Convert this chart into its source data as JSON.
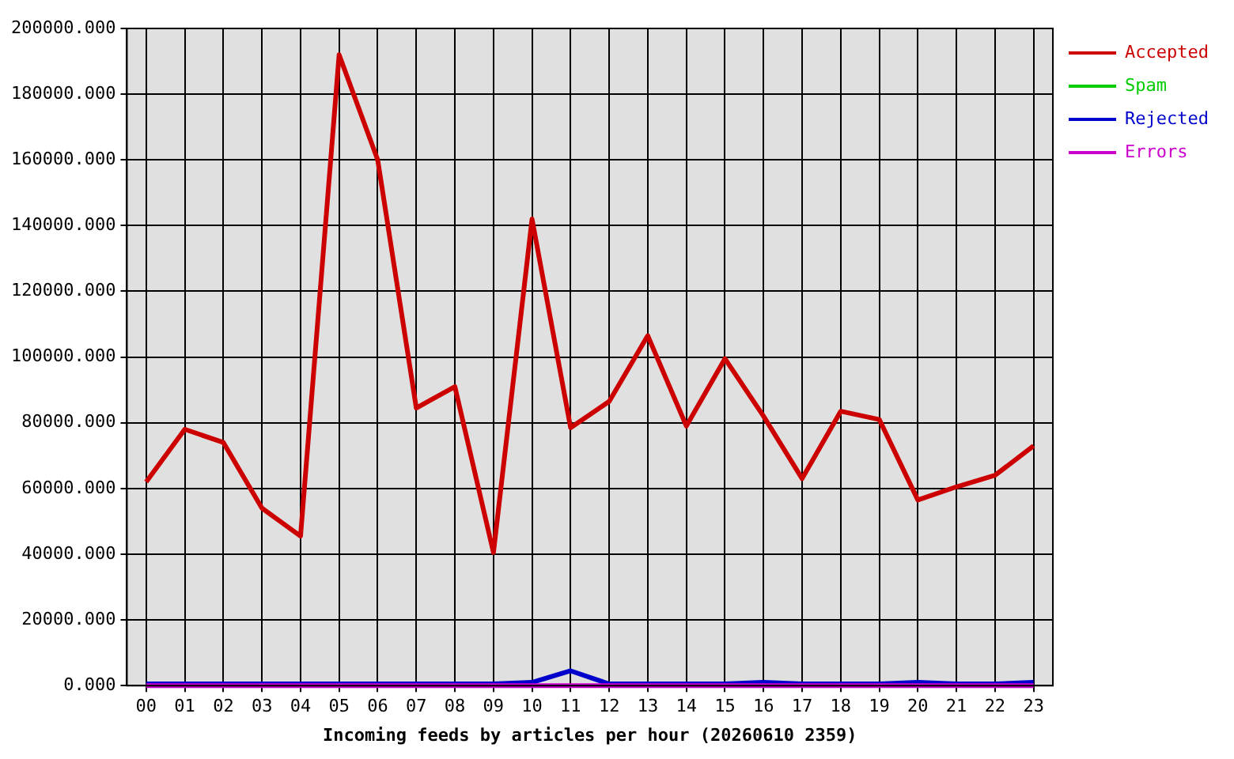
{
  "chart_data": {
    "type": "line",
    "xlabel": "Incoming feeds by articles per hour (20260610 2359)",
    "categories": [
      "00",
      "01",
      "02",
      "03",
      "04",
      "05",
      "06",
      "07",
      "08",
      "09",
      "10",
      "11",
      "12",
      "13",
      "14",
      "15",
      "16",
      "17",
      "18",
      "19",
      "20",
      "21",
      "22",
      "23"
    ],
    "series": [
      {
        "name": "Accepted",
        "color": "#cc0000",
        "values": [
          62000,
          78000,
          74000,
          54000,
          45500,
          192000,
          160000,
          84500,
          91000,
          40500,
          142000,
          78500,
          86500,
          106500,
          79000,
          99500,
          82000,
          63000,
          83500,
          81000,
          56500,
          60500,
          64000,
          73000
        ]
      },
      {
        "name": "Spam",
        "color": "#00cc00",
        "values": [
          null,
          null,
          null,
          null,
          null,
          null,
          null,
          null,
          null,
          null,
          null,
          null,
          null,
          null,
          null,
          null,
          null,
          null,
          null,
          null,
          null,
          null,
          null,
          null
        ]
      },
      {
        "name": "Rejected",
        "color": "#0000cc",
        "values": [
          500,
          500,
          500,
          500,
          500,
          500,
          500,
          500,
          500,
          500,
          1000,
          4500,
          500,
          500,
          500,
          500,
          1000,
          500,
          500,
          500,
          1000,
          500,
          500,
          1000
        ]
      },
      {
        "name": "Errors",
        "color": "#cc00cc",
        "values": [
          0,
          0,
          0,
          0,
          0,
          0,
          0,
          0,
          0,
          0,
          0,
          0,
          0,
          0,
          0,
          0,
          0,
          0,
          0,
          0,
          0,
          0,
          0,
          0
        ]
      }
    ],
    "ylim": [
      0,
      200000
    ],
    "yticks": [
      {
        "value": 0,
        "label": "0.000"
      },
      {
        "value": 20000,
        "label": "20000.000"
      },
      {
        "value": 40000,
        "label": "40000.000"
      },
      {
        "value": 60000,
        "label": "60000.000"
      },
      {
        "value": 80000,
        "label": "80000.000"
      },
      {
        "value": 100000,
        "label": "100000.000"
      },
      {
        "value": 120000,
        "label": "120000.000"
      },
      {
        "value": 140000,
        "label": "140000.000"
      },
      {
        "value": 160000,
        "label": "160000.000"
      },
      {
        "value": 180000,
        "label": "180000.000"
      },
      {
        "value": 200000,
        "label": "200000.000"
      }
    ],
    "grid": true,
    "legend": "top right",
    "marker": "none",
    "line_style": "solid"
  }
}
